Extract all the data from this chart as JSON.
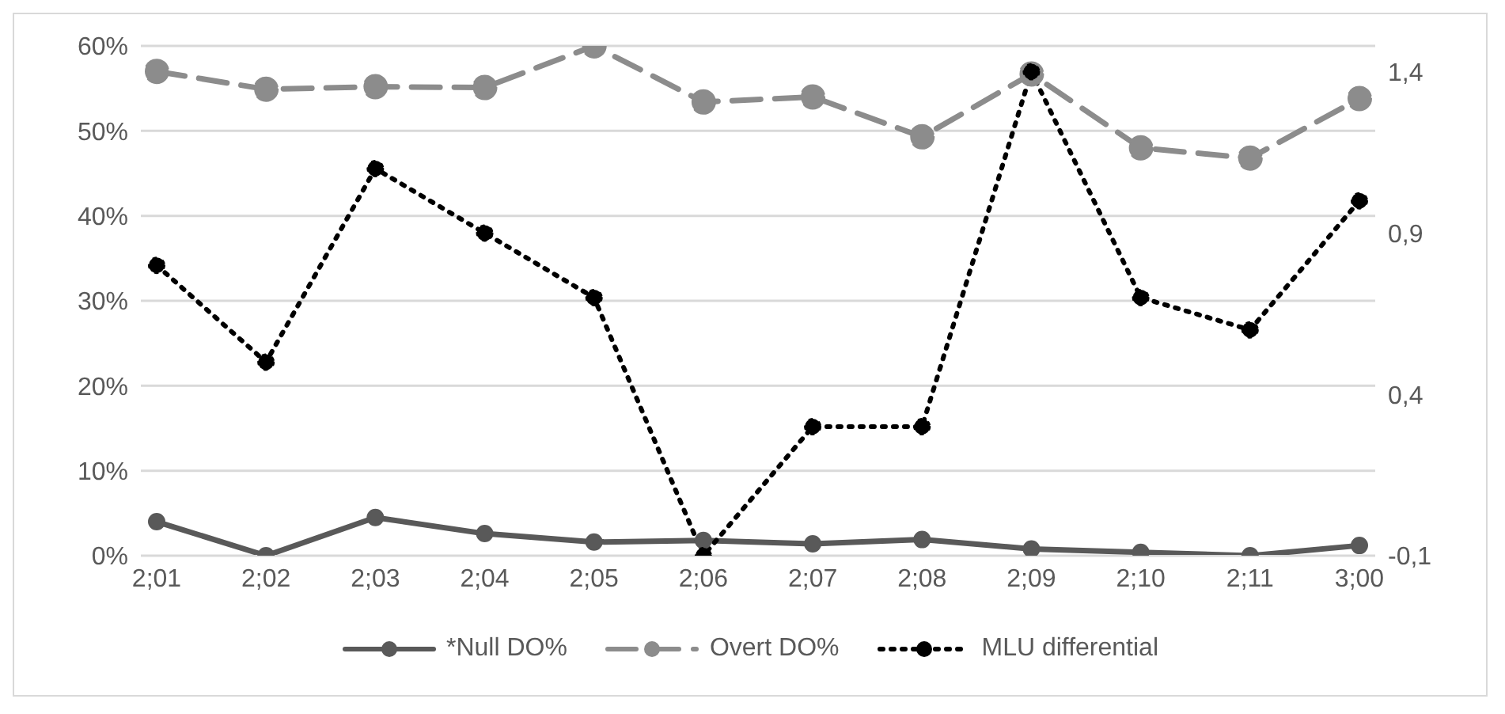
{
  "chart_data": {
    "type": "line",
    "categories": [
      "2;01",
      "2;02",
      "2;03",
      "2;04",
      "2;05",
      "2;06",
      "2;07",
      "2;08",
      "2;09",
      "2;10",
      "2;11",
      "3;00"
    ],
    "series": [
      {
        "name": "*Null DO%",
        "color": "#595959",
        "line_style": "solid",
        "values": [
          4.0,
          0,
          4.5,
          2.6,
          1.6,
          1.8,
          1.4,
          1.9,
          0.8,
          0.4,
          0,
          1.2
        ]
      },
      {
        "name": "Overt DO%",
        "color": "#8c8c8c",
        "line_style": "dashed",
        "values": [
          57.0,
          54.9,
          55.2,
          55.1,
          60,
          53.4,
          54.0,
          49.3,
          56.7,
          48.0,
          46.8,
          53.8
        ]
      },
      {
        "name": "MLU differential",
        "color": "#000000",
        "line_style": "dotted",
        "axis": "y2",
        "values": [
          0.8,
          0.5,
          1.1,
          0.9,
          0.7,
          -0.1,
          0.3,
          0.3,
          1.4,
          0.7,
          0.6,
          1.0
        ]
      }
    ],
    "ylim": [
      0,
      60
    ],
    "yticks": [
      {
        "value": 0,
        "label": "0%"
      },
      {
        "value": 10,
        "label": "10%"
      },
      {
        "value": 20,
        "label": "20%"
      },
      {
        "value": 30,
        "label": "30%"
      },
      {
        "value": 40,
        "label": "40%"
      },
      {
        "value": 50,
        "label": "50%"
      },
      {
        "value": 60,
        "label": "60%"
      }
    ],
    "y2lim": [
      -0.1,
      1.48
    ],
    "y2ticks": [
      {
        "value": -0.1,
        "label": "-0,1"
      },
      {
        "value": 0.4,
        "label": "0,4"
      },
      {
        "value": 0.9,
        "label": "0,9"
      },
      {
        "value": 1.4,
        "label": "1,4"
      }
    ],
    "grid": "y",
    "legend": "bottom",
    "marker": "circle"
  }
}
